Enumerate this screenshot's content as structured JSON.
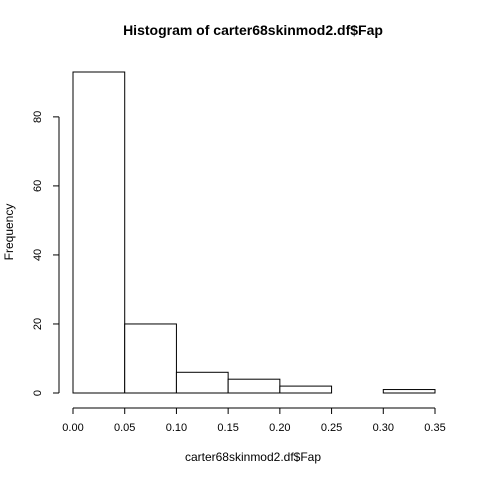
{
  "chart_data": {
    "type": "bar",
    "title": "Histogram of carter68skinmod2.df$Fap",
    "xlabel": "carter68skinmod2.df$Fap",
    "ylabel": "Frequency",
    "bins": [
      {
        "start": 0.0,
        "end": 0.05,
        "count": 93
      },
      {
        "start": 0.05,
        "end": 0.1,
        "count": 20
      },
      {
        "start": 0.1,
        "end": 0.15,
        "count": 6
      },
      {
        "start": 0.15,
        "end": 0.2,
        "count": 4
      },
      {
        "start": 0.2,
        "end": 0.25,
        "count": 2
      },
      {
        "start": 0.25,
        "end": 0.3,
        "count": 0
      },
      {
        "start": 0.3,
        "end": 0.35,
        "count": 1
      }
    ],
    "xlim": [
      0,
      0.35
    ],
    "ylim": [
      0,
      93
    ],
    "xticks": [
      "0.00",
      "0.05",
      "0.10",
      "0.15",
      "0.20",
      "0.25",
      "0.30",
      "0.35"
    ],
    "yticks": [
      "0",
      "20",
      "40",
      "60",
      "80"
    ],
    "grid": false,
    "legend": "none"
  }
}
